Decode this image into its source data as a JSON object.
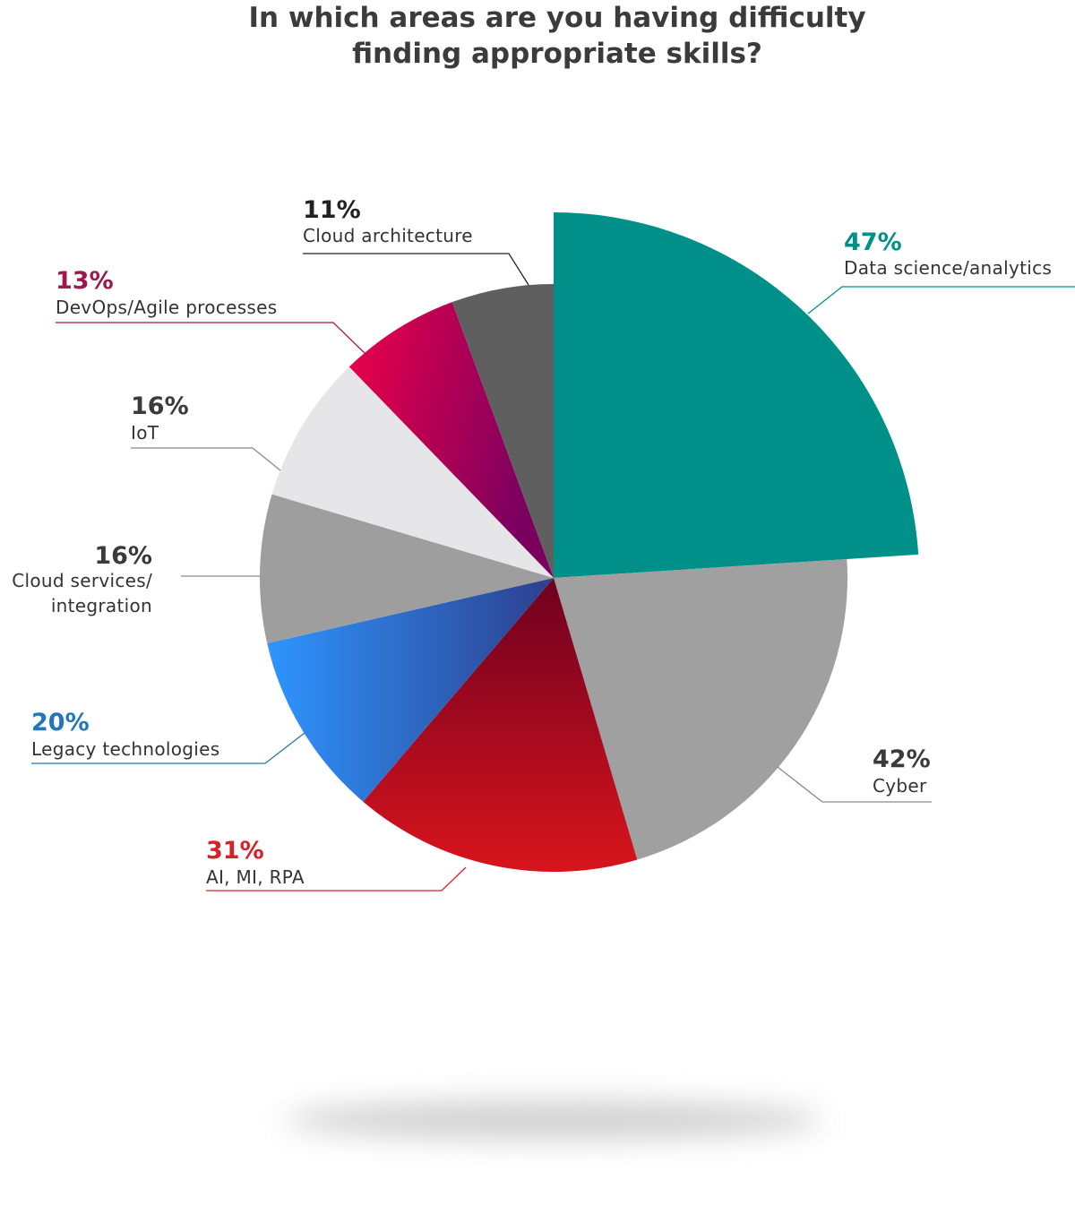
{
  "title_line1": "In which areas are you having difficulty",
  "title_line2": "finding appropriate skills?",
  "chart_data": {
    "type": "pie",
    "title": "In which areas are you having difficulty finding appropriate skills?",
    "slices": [
      {
        "label": "Data science/analytics",
        "value": 47,
        "pct_text": "47%",
        "color": "#00908a",
        "exploded": true
      },
      {
        "label": "Cyber",
        "value": 42,
        "pct_text": "42%",
        "color": "#a0a0a0"
      },
      {
        "label": "AI, MI, RPA",
        "value": 31,
        "pct_text": "31%",
        "color": "#c8141c"
      },
      {
        "label": "Legacy technologies",
        "value": 20,
        "pct_text": "20%",
        "color": "#2e8ff0"
      },
      {
        "label": "Cloud services/ integration",
        "label_lines": [
          "Cloud services/",
          "integration"
        ],
        "value": 16,
        "pct_text": "16%",
        "color": "#9e9e9e"
      },
      {
        "label": "IoT",
        "value": 16,
        "pct_text": "16%",
        "color": "#e6e6e8"
      },
      {
        "label": "DevOps/Agile processes",
        "value": 13,
        "pct_text": "13%",
        "color": "#c8084e"
      },
      {
        "label": "Cloud architecture",
        "value": 11,
        "pct_text": "11%",
        "color": "#5f5f5f"
      }
    ],
    "legend": "none",
    "percent_label_colors": {
      "Data science/analytics": "#00908a",
      "Cyber": "#3a3a3a",
      "AI, MI, RPA": "#d8202a",
      "Legacy technologies": "#2277b8",
      "Cloud services/ integration": "#3a3a3a",
      "IoT": "#3a3a3a",
      "DevOps/Agile processes": "#a0164f",
      "Cloud architecture": "#222222"
    }
  }
}
